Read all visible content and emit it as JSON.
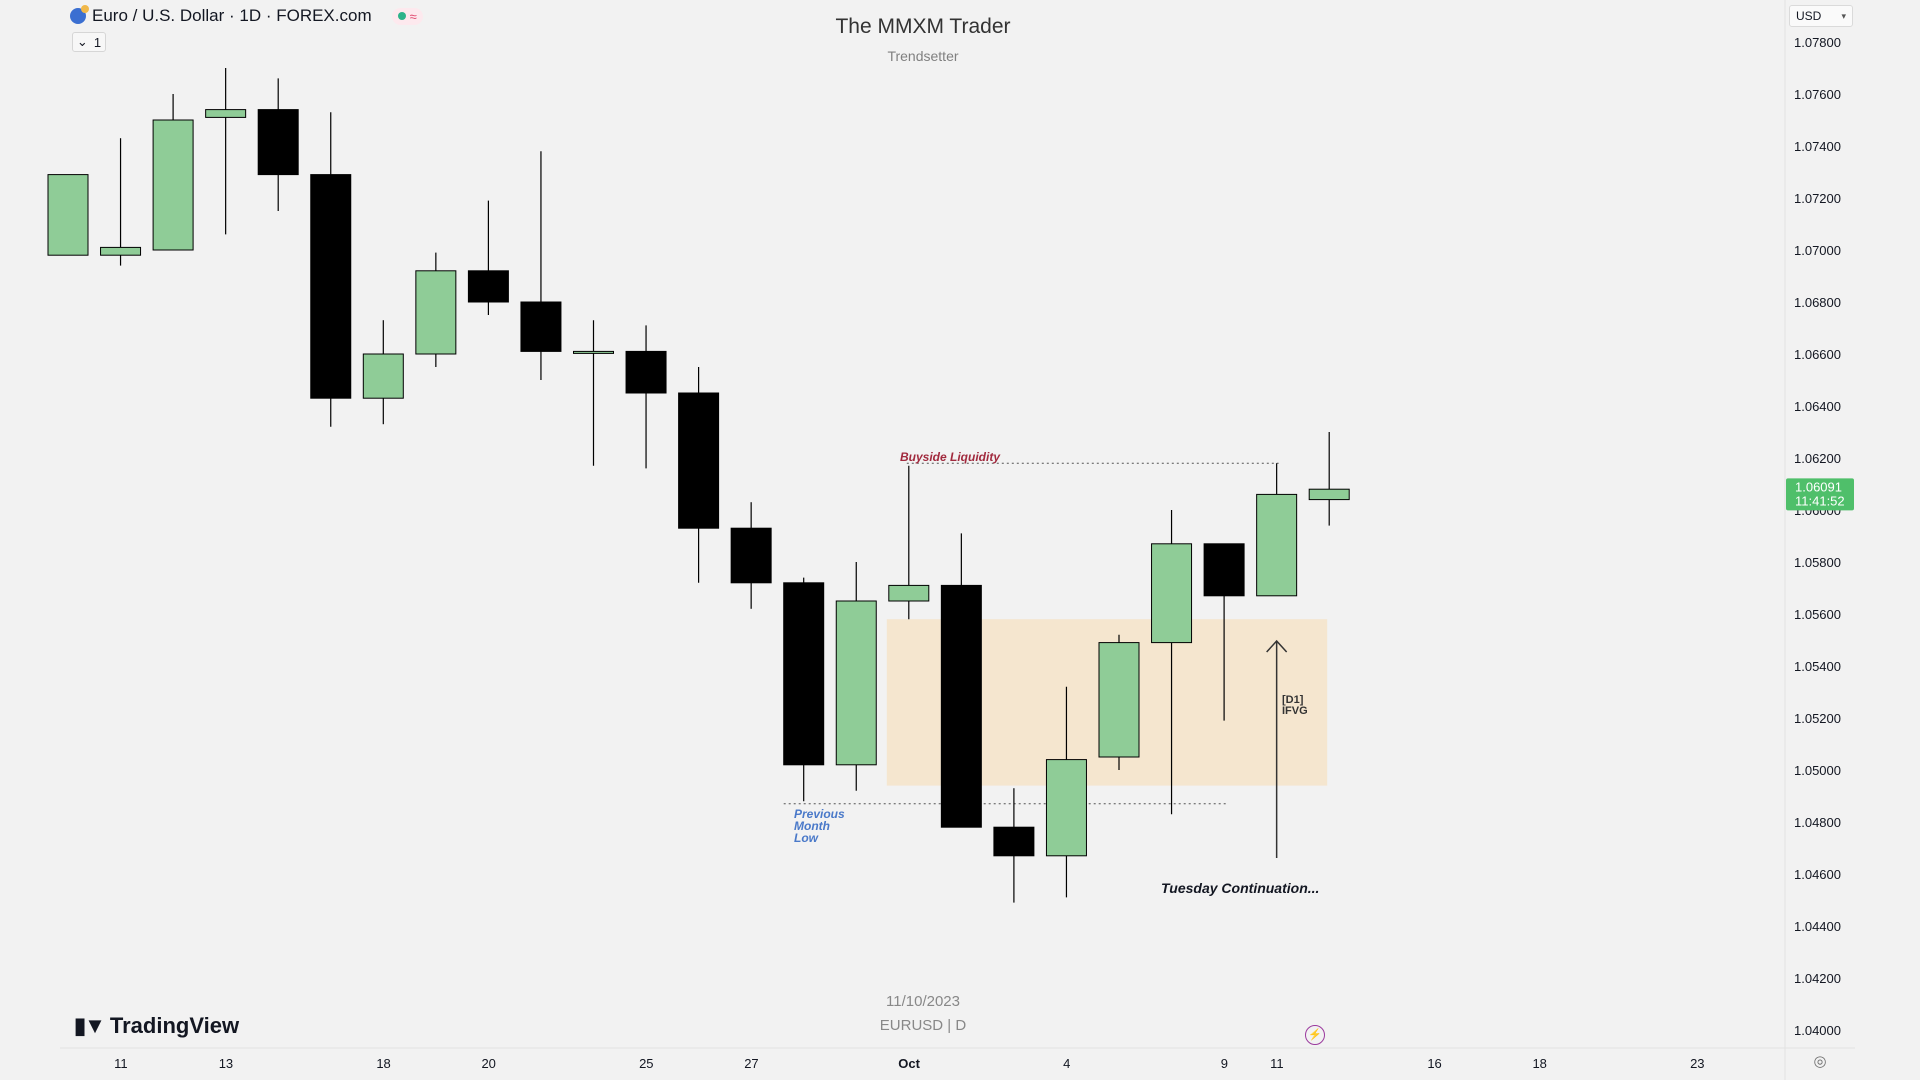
{
  "header": {
    "symbol_title": "Euro / U.S. Dollar · 1D · FOREX.com",
    "collapse_label": "1",
    "chart_title": "The MMXM Trader",
    "chart_subtitle": "Trendsetter",
    "currency": "USD"
  },
  "footer": {
    "date": "11/10/2023",
    "symbol": "EURUSD | D",
    "brand": "TradingView"
  },
  "annotations": {
    "buyside": "Buyside Liquidity",
    "pml_line1": "Previous",
    "pml_line2": "Month",
    "pml_line3": "Low",
    "ifvg_line1": "[D1]",
    "ifvg_line2": "IFVG",
    "continuation": "Tuesday Continuation..."
  },
  "colors": {
    "bull": "#8fcc97",
    "bear": "#000000",
    "zone": "#f5e6cf",
    "price_tag": "#4fbf6a",
    "annotation_red": "#a12a3e",
    "annotation_blue": "#4a79c9"
  },
  "icons": [
    "globe-icon",
    "chevron-down-icon",
    "tradingview-logo-icon",
    "lightning-icon",
    "settings-icon"
  ],
  "chart_data": {
    "type": "candlestick",
    "price_axis_ticks": [
      "1.07800",
      "1.07600",
      "1.07400",
      "1.07200",
      "1.07000",
      "1.06800",
      "1.06600",
      "1.06400",
      "1.06200",
      "1.06000",
      "1.05800",
      "1.05600",
      "1.05400",
      "1.05200",
      "1.05000",
      "1.04800",
      "1.04600",
      "1.04400",
      "1.04200",
      "1.04000"
    ],
    "time_axis_ticks": [
      "11",
      "13",
      "18",
      "20",
      "25",
      "27",
      "Oct",
      "4",
      "9",
      "11",
      "16",
      "18",
      "23"
    ],
    "last_price": "1.06091",
    "countdown": "11:41:52",
    "ylim": [
      1.0395,
      1.0795
    ],
    "candles": [
      {
        "o": 1.0698,
        "h": 1.0729,
        "l": 1.0698,
        "c": 1.0729
      },
      {
        "o": 1.0698,
        "h": 1.0743,
        "l": 1.0694,
        "c": 1.0701
      },
      {
        "o": 1.07,
        "h": 1.076,
        "l": 1.07,
        "c": 1.075
      },
      {
        "o": 1.0751,
        "h": 1.077,
        "l": 1.0706,
        "c": 1.0754
      },
      {
        "o": 1.0754,
        "h": 1.0766,
        "l": 1.0715,
        "c": 1.0729
      },
      {
        "o": 1.0729,
        "h": 1.0753,
        "l": 1.0632,
        "c": 1.0643
      },
      {
        "o": 1.0643,
        "h": 1.0673,
        "l": 1.0633,
        "c": 1.066
      },
      {
        "o": 1.066,
        "h": 1.0699,
        "l": 1.0655,
        "c": 1.0692
      },
      {
        "o": 1.0692,
        "h": 1.0719,
        "l": 1.0675,
        "c": 1.068
      },
      {
        "o": 1.068,
        "h": 1.0738,
        "l": 1.065,
        "c": 1.0661
      },
      {
        "o": 1.0661,
        "h": 1.0673,
        "l": 1.0617,
        "c": 1.0661
      },
      {
        "o": 1.0661,
        "h": 1.0671,
        "l": 1.0616,
        "c": 1.0645
      },
      {
        "o": 1.0645,
        "h": 1.0655,
        "l": 1.0572,
        "c": 1.0593
      },
      {
        "o": 1.0593,
        "h": 1.0603,
        "l": 1.0562,
        "c": 1.0572
      },
      {
        "o": 1.0572,
        "h": 1.0574,
        "l": 1.0488,
        "c": 1.0502
      },
      {
        "o": 1.0502,
        "h": 1.058,
        "l": 1.0492,
        "c": 1.0565
      },
      {
        "o": 1.0565,
        "h": 1.0617,
        "l": 1.0558,
        "c": 1.0571
      },
      {
        "o": 1.0571,
        "h": 1.0591,
        "l": 1.0478,
        "c": 1.0478
      },
      {
        "o": 1.0478,
        "h": 1.0493,
        "l": 1.0449,
        "c": 1.0467
      },
      {
        "o": 1.0467,
        "h": 1.0532,
        "l": 1.0451,
        "c": 1.0504
      },
      {
        "o": 1.0505,
        "h": 1.0552,
        "l": 1.05,
        "c": 1.0549
      },
      {
        "o": 1.0549,
        "h": 1.06,
        "l": 1.0483,
        "c": 1.0587
      },
      {
        "o": 1.0587,
        "h": 1.0587,
        "l": 1.0519,
        "c": 1.0567
      },
      {
        "o": 1.0567,
        "h": 1.0618,
        "l": 1.0567,
        "c": 1.0606
      },
      {
        "o": 1.0604,
        "h": 1.063,
        "l": 1.0594,
        "c": 1.0608
      }
    ],
    "zone": {
      "top": 1.0558,
      "bottom": 1.0494,
      "from_index": 16,
      "to_index": 24
    },
    "previous_month_low": 1.0487,
    "buyside_liquidity": 1.0618
  }
}
